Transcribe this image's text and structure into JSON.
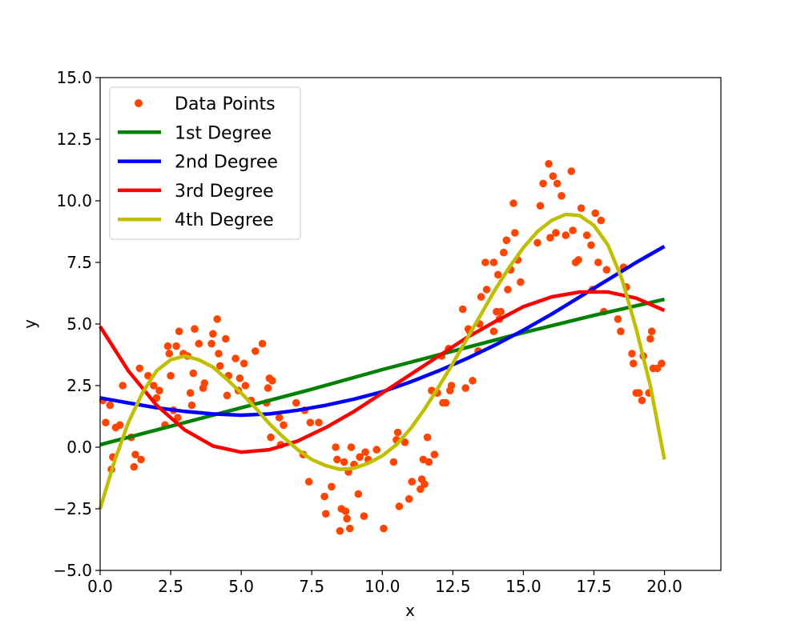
{
  "chart_data": {
    "type": "scatter",
    "title": "",
    "xlabel": "x",
    "ylabel": "y",
    "xlim": [
      0,
      22
    ],
    "ylim": [
      -5,
      15
    ],
    "xticks": [
      0.0,
      2.5,
      5.0,
      7.5,
      10.0,
      12.5,
      15.0,
      17.5,
      20.0
    ],
    "xtick_labels": [
      "0.0",
      "2.5",
      "5.0",
      "7.5",
      "10.0",
      "12.5",
      "15.0",
      "17.5",
      "20.0"
    ],
    "yticks": [
      -5.0,
      -2.5,
      0.0,
      2.5,
      5.0,
      7.5,
      10.0,
      12.5,
      15.0
    ],
    "ytick_labels": [
      "−5.0",
      "−2.5",
      "0.0",
      "2.5",
      "5.0",
      "7.5",
      "10.0",
      "12.5",
      "15.0"
    ],
    "grid": false,
    "legend_position": "top-left",
    "scatter": {
      "name": "Data Points",
      "color": "#ff4500",
      "points": [
        [
          0.1,
          1.9
        ],
        [
          0.2,
          1.0
        ],
        [
          0.35,
          1.7
        ],
        [
          0.4,
          -0.9
        ],
        [
          0.45,
          -0.4
        ],
        [
          0.55,
          0.8
        ],
        [
          0.7,
          0.9
        ],
        [
          0.8,
          2.5
        ],
        [
          1.1,
          0.4
        ],
        [
          1.2,
          -0.8
        ],
        [
          1.25,
          -0.3
        ],
        [
          1.4,
          3.2
        ],
        [
          1.45,
          -0.5
        ],
        [
          1.7,
          2.9
        ],
        [
          1.9,
          2.5
        ],
        [
          2.0,
          2.0
        ],
        [
          2.1,
          2.3
        ],
        [
          2.3,
          0.9
        ],
        [
          2.4,
          4.1
        ],
        [
          2.45,
          3.8
        ],
        [
          2.5,
          2.9
        ],
        [
          2.6,
          1.5
        ],
        [
          2.7,
          4.1
        ],
        [
          2.75,
          1.2
        ],
        [
          2.8,
          4.7
        ],
        [
          2.95,
          3.8
        ],
        [
          3.1,
          3.7
        ],
        [
          3.2,
          2.2
        ],
        [
          3.25,
          1.7
        ],
        [
          3.3,
          3.0
        ],
        [
          3.35,
          4.8
        ],
        [
          3.5,
          4.2
        ],
        [
          3.65,
          2.4
        ],
        [
          3.7,
          2.6
        ],
        [
          3.95,
          4.2
        ],
        [
          4.0,
          4.6
        ],
        [
          4.15,
          5.2
        ],
        [
          4.2,
          3.8
        ],
        [
          4.25,
          3.3
        ],
        [
          4.45,
          4.4
        ],
        [
          4.5,
          2.1
        ],
        [
          4.55,
          2.9
        ],
        [
          4.8,
          3.6
        ],
        [
          4.9,
          2.3
        ],
        [
          4.95,
          2.8
        ],
        [
          5.1,
          3.4
        ],
        [
          5.15,
          2.5
        ],
        [
          5.35,
          1.9
        ],
        [
          5.5,
          3.9
        ],
        [
          5.75,
          4.2
        ],
        [
          5.9,
          1.8
        ],
        [
          5.95,
          2.4
        ],
        [
          6.0,
          2.8
        ],
        [
          6.05,
          0.4
        ],
        [
          6.1,
          2.7
        ],
        [
          6.35,
          1.2
        ],
        [
          6.4,
          0.1
        ],
        [
          6.5,
          0.9
        ],
        [
          6.95,
          1.8
        ],
        [
          7.2,
          -0.3
        ],
        [
          7.25,
          1.5
        ],
        [
          7.4,
          -1.4
        ],
        [
          7.45,
          1.0
        ],
        [
          7.75,
          1.0
        ],
        [
          7.95,
          -2.0
        ],
        [
          8.0,
          -2.7
        ],
        [
          8.2,
          -1.6
        ],
        [
          8.35,
          0.0
        ],
        [
          8.4,
          -0.5
        ],
        [
          8.5,
          -3.4
        ],
        [
          8.55,
          -2.5
        ],
        [
          8.65,
          -0.6
        ],
        [
          8.7,
          -2.6
        ],
        [
          8.75,
          -2.9
        ],
        [
          8.8,
          -1.0
        ],
        [
          8.85,
          -3.3
        ],
        [
          8.9,
          0.0
        ],
        [
          9.0,
          -0.7
        ],
        [
          9.15,
          -1.9
        ],
        [
          9.2,
          -0.4
        ],
        [
          9.35,
          -2.8
        ],
        [
          9.4,
          -0.2
        ],
        [
          9.5,
          -0.5
        ],
        [
          9.8,
          -0.1
        ],
        [
          10.05,
          -3.3
        ],
        [
          10.4,
          -0.6
        ],
        [
          10.5,
          0.3
        ],
        [
          10.55,
          0.6
        ],
        [
          10.6,
          -2.4
        ],
        [
          10.8,
          0.2
        ],
        [
          10.95,
          -2.1
        ],
        [
          11.05,
          -1.4
        ],
        [
          11.35,
          -1.7
        ],
        [
          11.4,
          -1.3
        ],
        [
          11.45,
          -0.5
        ],
        [
          11.5,
          -1.5
        ],
        [
          11.6,
          0.4
        ],
        [
          11.65,
          -0.6
        ],
        [
          11.75,
          2.3
        ],
        [
          11.85,
          -0.3
        ],
        [
          11.95,
          2.2
        ],
        [
          12.1,
          3.7
        ],
        [
          12.15,
          1.8
        ],
        [
          12.25,
          1.8
        ],
        [
          12.35,
          4.0
        ],
        [
          12.4,
          2.3
        ],
        [
          12.45,
          2.5
        ],
        [
          12.85,
          5.6
        ],
        [
          12.95,
          2.4
        ],
        [
          13.05,
          4.8
        ],
        [
          13.1,
          4.7
        ],
        [
          13.2,
          2.7
        ],
        [
          13.4,
          3.9
        ],
        [
          13.45,
          5.0
        ],
        [
          13.5,
          6.1
        ],
        [
          13.65,
          7.5
        ],
        [
          13.7,
          6.4
        ],
        [
          13.95,
          4.7
        ],
        [
          13.95,
          7.5
        ],
        [
          14.05,
          5.5
        ],
        [
          14.1,
          7.0
        ],
        [
          14.15,
          5.2
        ],
        [
          14.2,
          5.5
        ],
        [
          14.3,
          7.9
        ],
        [
          14.4,
          8.4
        ],
        [
          14.45,
          6.4
        ],
        [
          14.55,
          7.2
        ],
        [
          14.65,
          9.9
        ],
        [
          14.7,
          8.7
        ],
        [
          14.8,
          7.6
        ],
        [
          14.9,
          6.7
        ],
        [
          15.5,
          8.3
        ],
        [
          15.6,
          9.8
        ],
        [
          15.7,
          10.7
        ],
        [
          15.9,
          11.5
        ],
        [
          15.95,
          8.5
        ],
        [
          16.05,
          11.0
        ],
        [
          16.15,
          8.7
        ],
        [
          16.2,
          10.7
        ],
        [
          16.35,
          10.2
        ],
        [
          16.5,
          8.6
        ],
        [
          16.7,
          11.2
        ],
        [
          16.75,
          8.8
        ],
        [
          16.85,
          7.5
        ],
        [
          16.95,
          7.6
        ],
        [
          17.05,
          9.7
        ],
        [
          17.25,
          8.6
        ],
        [
          17.4,
          8.2
        ],
        [
          17.45,
          6.4
        ],
        [
          17.55,
          9.5
        ],
        [
          17.65,
          7.5
        ],
        [
          17.75,
          9.2
        ],
        [
          17.85,
          5.5
        ],
        [
          17.95,
          7.2
        ],
        [
          18.35,
          5.2
        ],
        [
          18.45,
          4.7
        ],
        [
          18.55,
          7.3
        ],
        [
          18.65,
          6.5
        ],
        [
          18.85,
          3.8
        ],
        [
          18.9,
          3.4
        ],
        [
          19.0,
          2.2
        ],
        [
          19.1,
          2.2
        ],
        [
          19.2,
          1.9
        ],
        [
          19.25,
          3.7
        ],
        [
          19.45,
          2.2
        ],
        [
          19.5,
          4.4
        ],
        [
          19.55,
          4.7
        ],
        [
          19.6,
          3.2
        ],
        [
          19.75,
          3.2
        ],
        [
          19.9,
          3.4
        ]
      ]
    },
    "series": [
      {
        "name": "1st Degree",
        "color": "#008000",
        "x": [
          0,
          2.5,
          5,
          7.5,
          10,
          12.5,
          15,
          17.5,
          20
        ],
        "y": [
          0.1,
          0.85,
          1.6,
          2.35,
          3.15,
          3.9,
          4.65,
          5.35,
          6.0
        ]
      },
      {
        "name": "2nd Degree",
        "color": "#0000ff",
        "x": [
          0,
          1,
          2,
          3,
          4,
          5,
          6,
          7,
          8,
          9,
          10,
          11,
          12,
          13,
          14,
          15,
          16,
          17,
          18,
          19,
          20
        ],
        "y": [
          2.0,
          1.8,
          1.6,
          1.45,
          1.35,
          1.3,
          1.35,
          1.5,
          1.7,
          1.95,
          2.25,
          2.65,
          3.1,
          3.6,
          4.15,
          4.75,
          5.4,
          6.1,
          6.8,
          7.5,
          8.15
        ]
      },
      {
        "name": "3rd Degree",
        "color": "#ff0000",
        "x": [
          0,
          1,
          2,
          3,
          4,
          5,
          6,
          7,
          8,
          9,
          10,
          11,
          12,
          13,
          14,
          15,
          16,
          17,
          18,
          19,
          20
        ],
        "y": [
          4.9,
          3.1,
          1.7,
          0.7,
          0.05,
          -0.2,
          -0.1,
          0.25,
          0.8,
          1.45,
          2.2,
          2.95,
          3.7,
          4.45,
          5.1,
          5.7,
          6.1,
          6.3,
          6.3,
          6.05,
          5.55
        ]
      },
      {
        "name": "4th Degree",
        "color": "#bfbf00",
        "x": [
          0,
          0.5,
          1,
          1.5,
          2,
          2.5,
          3,
          3.5,
          4,
          4.5,
          5,
          5.5,
          6,
          6.5,
          7,
          7.5,
          8,
          8.5,
          9,
          9.5,
          10,
          10.5,
          11,
          11.5,
          12,
          12.5,
          13,
          13.5,
          14,
          14.5,
          15,
          15.5,
          16,
          16.5,
          17,
          17.5,
          18,
          18.5,
          19,
          19.5,
          20
        ],
        "y": [
          -2.5,
          -0.6,
          1.0,
          2.2,
          3.1,
          3.55,
          3.7,
          3.55,
          3.25,
          2.75,
          2.2,
          1.6,
          0.95,
          0.4,
          -0.1,
          -0.5,
          -0.75,
          -0.9,
          -0.85,
          -0.65,
          -0.35,
          0.1,
          0.75,
          1.55,
          2.45,
          3.4,
          4.4,
          5.4,
          6.4,
          7.3,
          8.1,
          8.75,
          9.2,
          9.45,
          9.4,
          9.0,
          8.2,
          6.8,
          4.8,
          2.5,
          -0.5
        ]
      }
    ]
  }
}
